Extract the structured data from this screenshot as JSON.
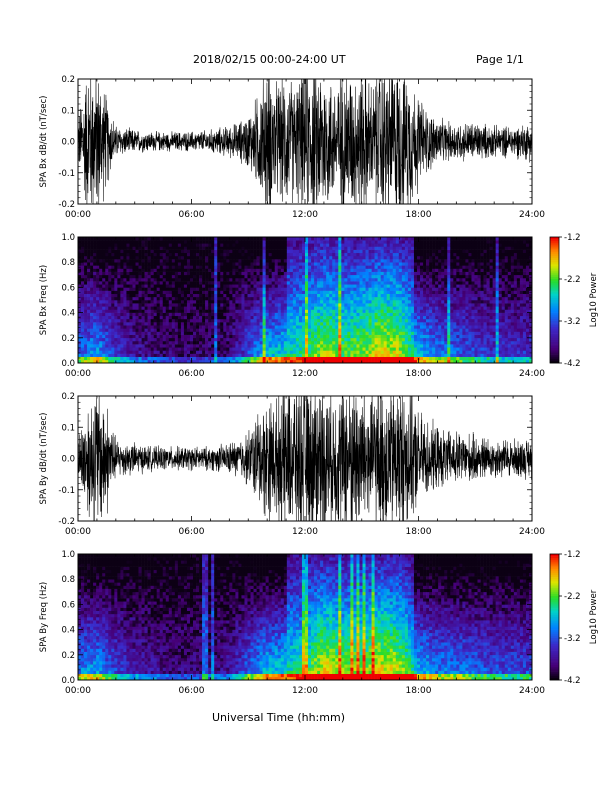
{
  "header": {
    "title": "2018/02/15  00:00-24:00 UT",
    "page": "Page 1/1"
  },
  "footer": {
    "xlabel": "Universal Time (hh:mm)"
  },
  "chart_data": [
    {
      "type": "line",
      "ylabel": "SPA Bx dB/dt (nT/sec)",
      "ylim": [
        -0.2,
        0.2
      ],
      "yticks": [
        "0.2",
        "0.1",
        "0.0",
        "-0.1",
        "-0.2"
      ],
      "xlim": [
        0,
        24
      ],
      "xticks": [
        "00:00",
        "06:00",
        "12:00",
        "18:00",
        "24:00"
      ],
      "envelope_x": [
        0,
        0.5,
        1.0,
        1.5,
        2.0,
        3,
        4,
        5,
        6,
        7,
        8,
        8.5,
        9,
        9.5,
        10,
        10.5,
        11,
        11.5,
        12,
        12.5,
        13,
        13.5,
        14,
        14.5,
        15,
        15.5,
        16,
        16.5,
        17,
        17.5,
        18,
        18.5,
        19,
        19.5,
        20,
        21,
        22,
        23,
        24
      ],
      "envelope_amp": [
        0.06,
        0.2,
        0.2,
        0.12,
        0.04,
        0.03,
        0.025,
        0.025,
        0.025,
        0.03,
        0.04,
        0.05,
        0.07,
        0.12,
        0.2,
        0.15,
        0.17,
        0.15,
        0.2,
        0.2,
        0.2,
        0.15,
        0.2,
        0.18,
        0.2,
        0.15,
        0.2,
        0.2,
        0.2,
        0.18,
        0.12,
        0.08,
        0.06,
        0.05,
        0.05,
        0.05,
        0.04,
        0.04,
        0.05
      ]
    },
    {
      "type": "heatmap",
      "ylabel": "SPA Bx Freq (Hz)",
      "ylim": [
        0,
        1.0
      ],
      "yticks": [
        "1.0",
        "0.8",
        "0.6",
        "0.4",
        "0.2",
        "0.0"
      ],
      "xlim": [
        0,
        24
      ],
      "xticks": [
        "00:00",
        "06:00",
        "12:00",
        "18:00",
        "24:00"
      ],
      "colorbar_label": "Log10 Power",
      "colorbar_ticks": [
        "-1.2",
        "-2.2",
        "-3.2",
        "-4.2"
      ],
      "clim": [
        -4.2,
        -1.2
      ],
      "activity_x": [
        0,
        1,
        2,
        3,
        4,
        5,
        6,
        7,
        8,
        9,
        10,
        11,
        12,
        13,
        14,
        15,
        16,
        17,
        18,
        19,
        20,
        21,
        22,
        23,
        24
      ],
      "activity_level": [
        0.4,
        0.5,
        0.3,
        0.2,
        0.15,
        0.12,
        0.12,
        0.12,
        0.15,
        0.35,
        0.55,
        0.6,
        0.65,
        0.8,
        0.7,
        0.75,
        0.85,
        0.8,
        0.55,
        0.45,
        0.4,
        0.35,
        0.3,
        0.3,
        0.3
      ]
    },
    {
      "type": "line",
      "ylabel": "SPA By dB/dt (nT/sec)",
      "ylim": [
        -0.2,
        0.2
      ],
      "yticks": [
        "0.2",
        "0.1",
        "0.0",
        "-0.1",
        "-0.2"
      ],
      "xlim": [
        0,
        24
      ],
      "xticks": [
        "00:00",
        "06:00",
        "12:00",
        "18:00",
        "24:00"
      ],
      "envelope_x": [
        0,
        0.5,
        1.0,
        1.5,
        2.0,
        3,
        4,
        5,
        6,
        7,
        8,
        8.5,
        9,
        9.5,
        10,
        10.5,
        11,
        11.5,
        12,
        12.5,
        13,
        13.5,
        14,
        14.5,
        15,
        15.5,
        16,
        16.5,
        17,
        17.5,
        18,
        18.5,
        19,
        19.5,
        20,
        21,
        22,
        23,
        24
      ],
      "envelope_amp": [
        0.05,
        0.15,
        0.2,
        0.15,
        0.05,
        0.04,
        0.03,
        0.03,
        0.03,
        0.03,
        0.04,
        0.05,
        0.07,
        0.12,
        0.16,
        0.15,
        0.2,
        0.2,
        0.2,
        0.2,
        0.2,
        0.18,
        0.2,
        0.2,
        0.2,
        0.18,
        0.2,
        0.2,
        0.2,
        0.18,
        0.12,
        0.1,
        0.08,
        0.07,
        0.07,
        0.06,
        0.05,
        0.05,
        0.05
      ]
    },
    {
      "type": "heatmap",
      "ylabel": "SPA By Freq (Hz)",
      "ylim": [
        0,
        1.0
      ],
      "yticks": [
        "1.0",
        "0.8",
        "0.6",
        "0.4",
        "0.2",
        "0.0"
      ],
      "xlim": [
        0,
        24
      ],
      "xticks": [
        "00:00",
        "06:00",
        "12:00",
        "18:00",
        "24:00"
      ],
      "colorbar_label": "Log10 Power",
      "colorbar_ticks": [
        "-1.2",
        "-2.2",
        "-3.2",
        "-4.2"
      ],
      "clim": [
        -4.2,
        -1.2
      ],
      "activity_x": [
        0,
        1,
        2,
        3,
        4,
        5,
        6,
        7,
        8,
        9,
        10,
        11,
        12,
        13,
        14,
        15,
        16,
        17,
        18,
        19,
        20,
        21,
        22,
        23,
        24
      ],
      "activity_level": [
        0.45,
        0.5,
        0.35,
        0.25,
        0.2,
        0.15,
        0.15,
        0.15,
        0.2,
        0.4,
        0.55,
        0.6,
        0.65,
        0.85,
        0.75,
        0.75,
        0.85,
        0.8,
        0.55,
        0.45,
        0.45,
        0.4,
        0.35,
        0.35,
        0.35
      ]
    }
  ]
}
